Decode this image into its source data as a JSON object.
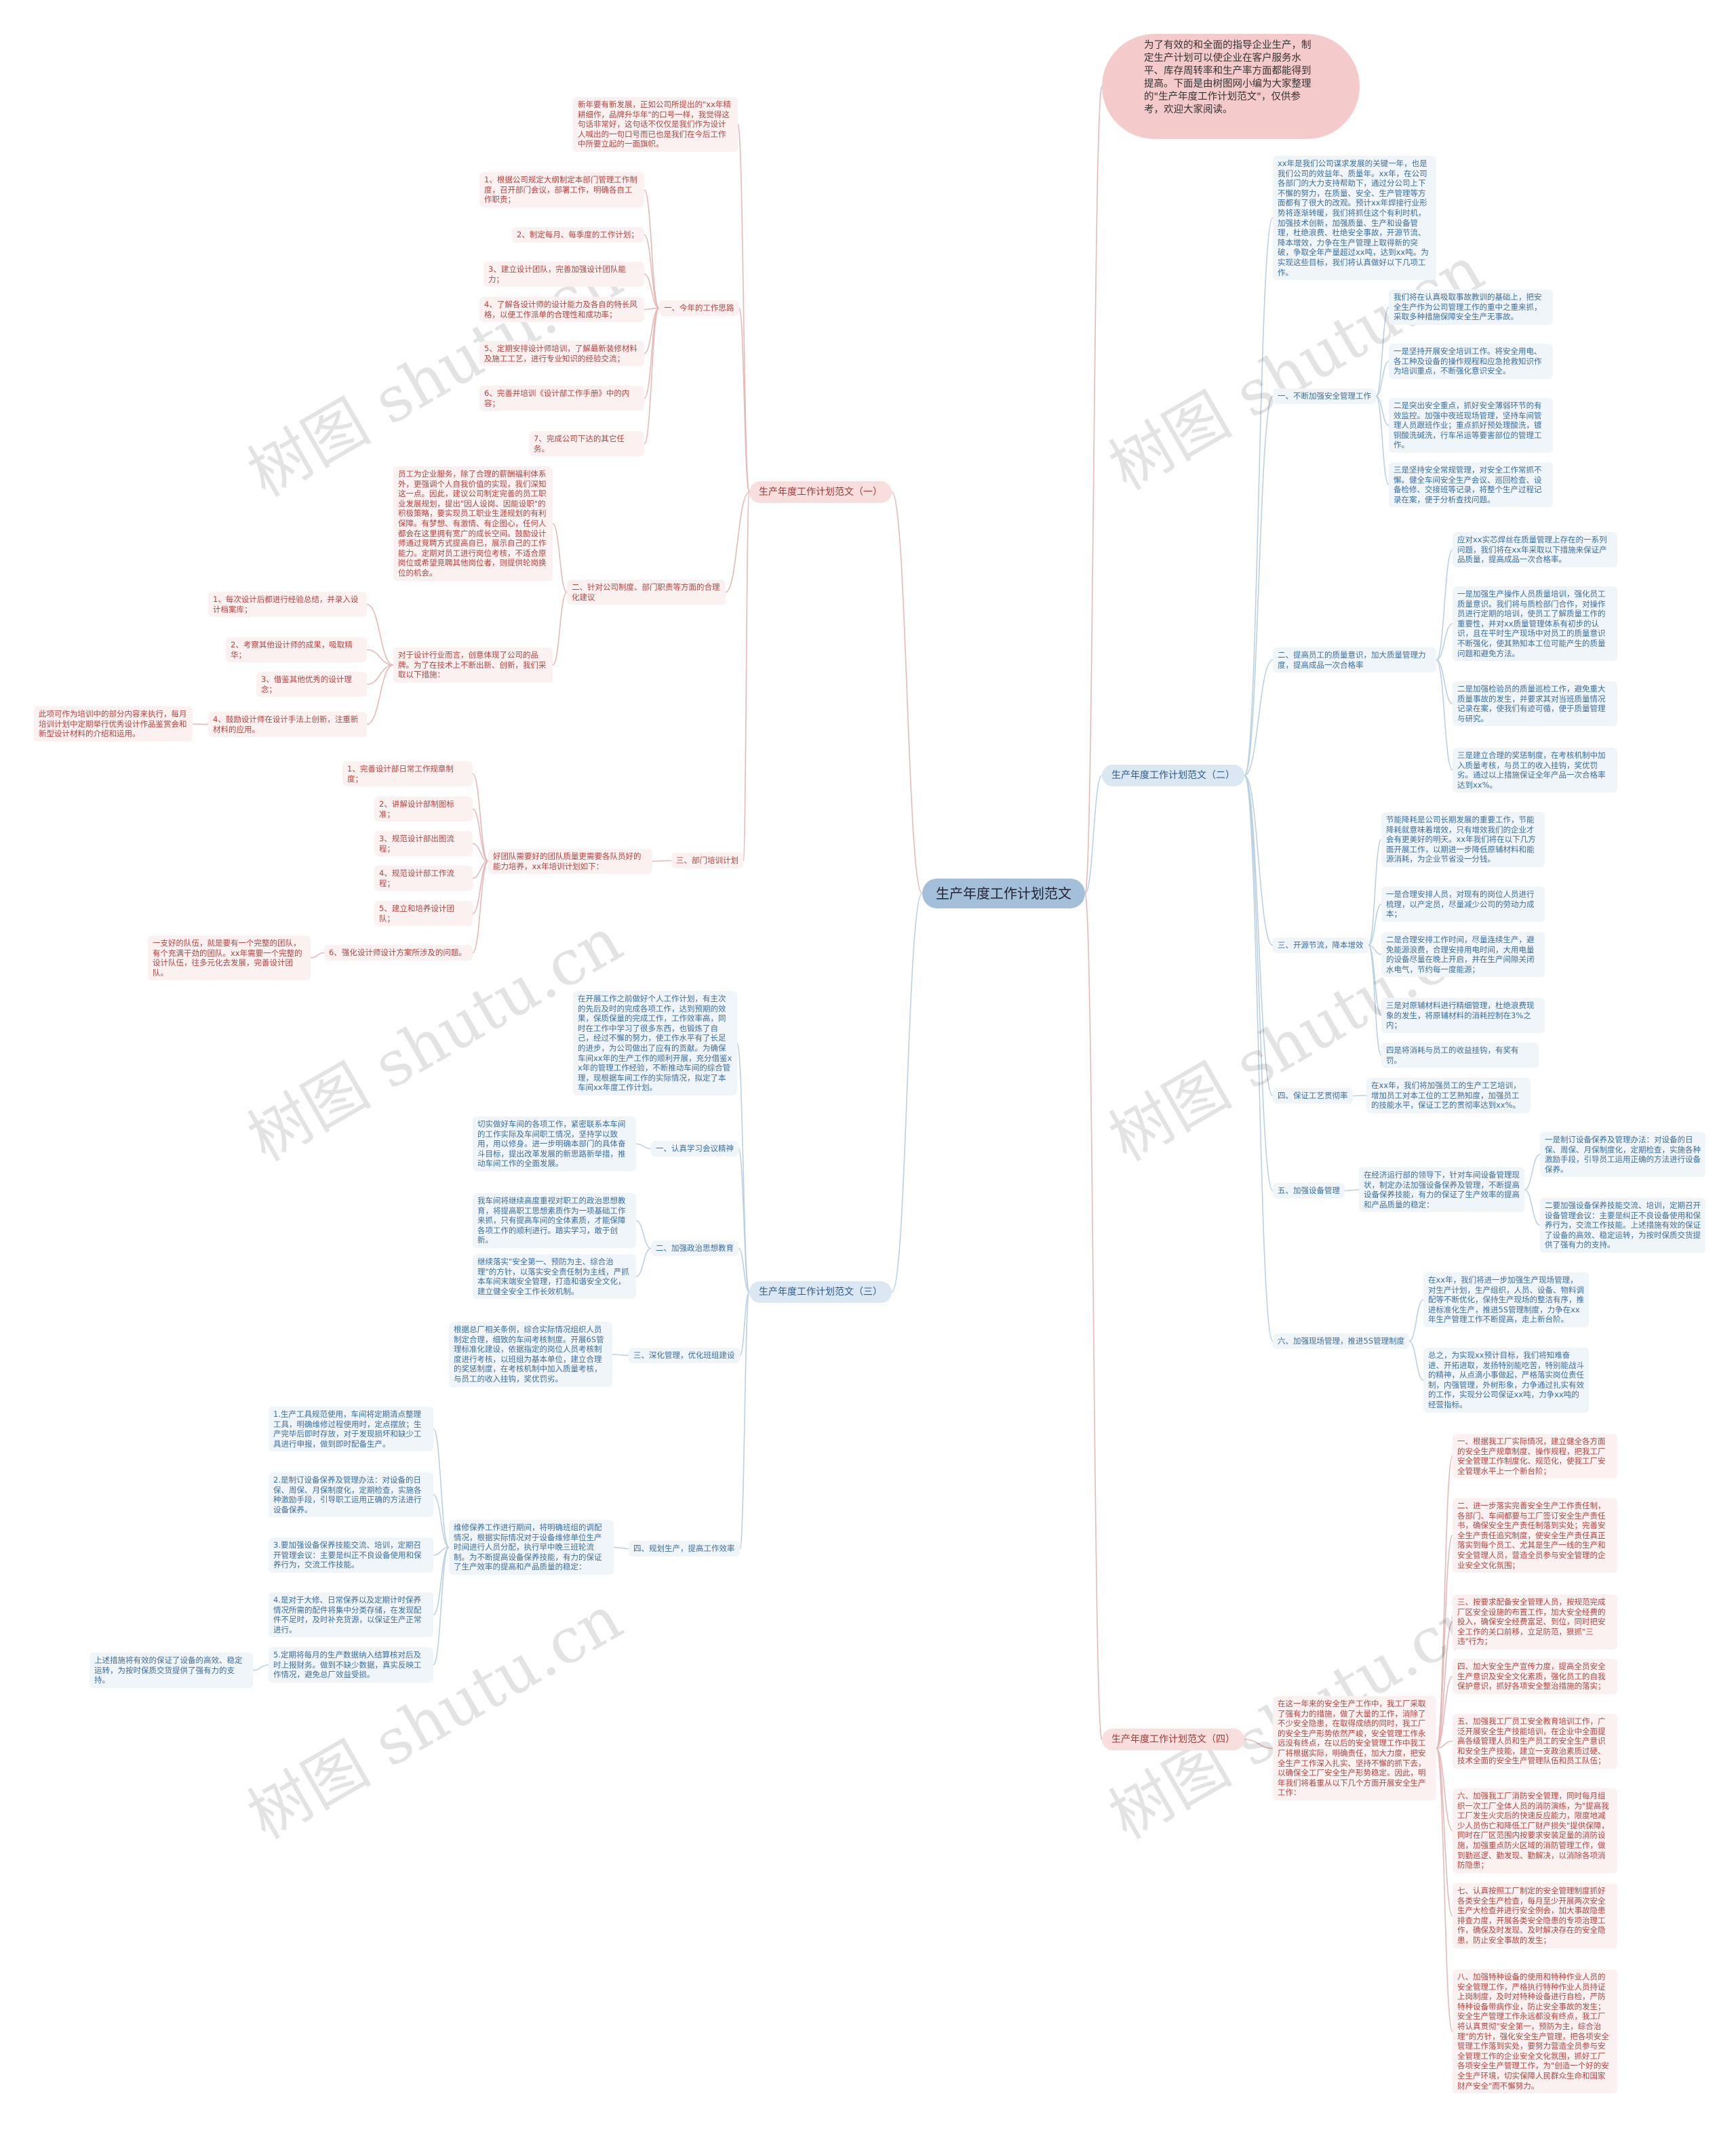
{
  "center": "生产年度工作计划范文",
  "intro": "为了有效的和全面的指导企业生产，制定生产计划可以使企业在客户服务水平、库存周转率和生产率方面都能得到提高。下面是由树图网小编为大家整理的\"生产年度工作计划范文\"，仅供参考，欢迎大家阅读。",
  "watermark": "树图 shutu.cn",
  "colors": {
    "pink_line": "#e6b9b9",
    "blue_line": "#bcd0e3",
    "center": "#a3bfd9",
    "intro_bubble": "#f5caca"
  },
  "plan1": {
    "label": "生产年度工作计划范文（一）",
    "intro": "新年要有新发展，正如公司所提出的\"xx年精耕细作，品牌升华年\"的口号一样，我觉得这句话非常好，这句话不仅仅是我们作为设计人喊出的一句口号而已也是我们在今后工作中所要立起的一面旗帜。",
    "s1": {
      "title": "一、今年的工作思路",
      "items": [
        "1、根据公司规定大纲制定本部门管理工作制度，召开部门会议，部署工作，明确各自工作职责；",
        "2、制定每月、每季度的工作计划；",
        "3、建立设计团队，完善加强设计团队能力；",
        "4、了解各设计师的设计能力及各自的特长风格，以便工作派单的合理性和成功率；",
        "5、定期安排设计师培训，了解最新装修材料及施工工艺，进行专业知识的经验交流；",
        "6、完善并培训《设计部工作手册》中的内容；",
        "7、完成公司下达的其它任务。"
      ]
    },
    "s2": {
      "title": "二、针对公司制度、部门职责等方面的合理化建议",
      "para": "员工为企业服务，除了合理的薪酬福利体系外，更强调个人自我价值的实现，我们深知这一点。因此，建议公司制定完善的员工职业发展规划，提出\"因人设岗、因能设职\"的积极策略，要实现员工职业生涯规划的有利保障。有梦想、有激情、有企图心，任何人都会在这里拥有宽广的成长空间。鼓励设计师通过竞聘方式提高自已，展示自己的工作能力。定期对员工进行岗位考核，不适合原岗位或希望竞聘其他岗位者，则提供轮岗换位的机会。",
      "para2": "对于设计行业而言，创意体现了公司的品牌。为了在技术上不断出新、创新，我们采取以下措施：",
      "items": [
        "1、每次设计后都进行经验总结，并录入设计档案库；",
        "2、考察其他设计师的成果，吸取精华；",
        "3、借鉴其他优秀的设计理念；",
        "4、鼓励设计师在设计手法上创新，注重新材料的应用。"
      ],
      "note": "此项可作为培训中的部分内容来执行，每月培训计划中定期举行优秀设计作品鉴赏会和新型设计材料的介绍和运用。"
    },
    "s3": {
      "title": "三、部门培训计划",
      "para": "好团队需要好的团队质量更需要各队员好的能力培养，xx年培训计划如下：",
      "items": [
        "1、完善设计部日常工作规章制度；",
        "2、讲解设计部制图标准；",
        "3、规范设计部出图流程；",
        "4、规范设计部工作流程；",
        "5、建立和培养设计团队；",
        "6、强化设计师设计方案所涉及的问题。"
      ],
      "note": "一支好的队伍，就是要有一个完整的团队，有个充满干劲的团队。xx年需要一个完整的设计队伍，往多元化去发展，完善设计团队。"
    }
  },
  "plan2": {
    "label": "生产年度工作计划范文（二）",
    "intro": "xx年是我们公司谋求发展的关键一年，也是我们公司的效益年、质量年。xx年，在公司各部门的大力支持帮助下，通过分公司上下不懈的努力，在质量、安全、生产管理等方面都有了很大的改观。预计xx年焊接行业形势将逐渐转暖，我们将抓住这个有利时机，加强技术创新，加强质量、生产和设备管理，杜绝浪费、杜绝安全事故，开源节流、降本增效，力争在生产管理上取得新的突破，争取全年产量超过xx吨，达到xx吨。为实现这些目标，我们将认真做好以下几项工作。",
    "s1": {
      "title": "一、不断加强安全管理工作",
      "items": [
        "我们将在认真吸取事故教训的基础上，把安全生产作为公司管理工作的重中之重来抓，采取多种措施保障安全生产无事故。",
        "一是坚持开展安全培训工作。将安全用电、各工种及设备的操作规程和应急抢救知识作为培训重点，不断强化意识安全。",
        "二是突出安全重点，抓好安全薄弱环节的有效监控。加强中夜班现场管理，坚持车间管理人员跟班作业；重点抓好预处理酸洗，镀铜酸洗碱洗，行车吊运等要害部位的管理工作。",
        "三是坚持安全常规管理，对安全工作常抓不懈。健全车间安全生产会议、巡回检查、设备检修、交接班等记录，将整个生产过程记录在案，便于分析查找问题。"
      ]
    },
    "s2": {
      "title": "二、提高员工的质量意识，加大质量管理力度，提高成品一次合格率",
      "items": [
        "应对xx实芯焊丝在质量管理上存在的一系列问题，我们将在xx年采取以下措施来保证产品质量，提高成品一次合格率。",
        "一是加强生产操作人员质量培训，强化员工质量意识。我们将与质检部门合作，对操作员进行定期的培训，使员工了解质量工作的重要性，并对xx质量管理体系有初步的认识，且在平时生产现场中对员工的质量意识不断强化，使其熟知本工位可能产生的质量问题和避免方法。",
        "二是加强检验员的质量巡检工作，避免重大质量事故的发生，并要求其对当班质量情况记录在案，使我们有迹可循，便于质量管理与研究。",
        "三是建立合理的奖惩制度，在考核机制中加入质量考核，与员工的收入挂钩，奖优罚劣。通过以上措施保证全年产品一次合格率达到xx%。"
      ]
    },
    "s3": {
      "title": "三、开源节流，降本增效",
      "items": [
        "节能降耗是公司长期发展的重要工作，节能降耗就意味着增效，只有增效我们的企业才会有更美好的明天。xx年我们将在以下几方面开展工作，以期进一步降低原辅材料和能源消耗，为企业节省没一分钱。",
        "一是合理安排人员，对现有的岗位人员进行梳理，以产定员，尽量减少公司的劳动力成本；",
        "二是合理安排工作时间，尽量连续生产，避免能源浪费，合理安排用电时间，大用电量的设备尽量在晚上开启，并在生产间隙关闭水电气，节约每一度能源；",
        "三是对原辅材料进行精细管理，杜绝浪费现象的发生，将原辅材料的消耗控制在3%之内；",
        "四是将消耗与员工的收益挂钩，有奖有罚。"
      ]
    },
    "s4": {
      "title": "四、保证工艺贯彻率",
      "text": "在xx年，我们将加强员工的生产工艺培训，增加员工对本工位的工艺熟知度，加强员工的技能水平，保证工艺的贯彻率达到xx%。"
    },
    "s5": {
      "title": "五、加强设备管理",
      "para": "在经济运行部的领导下，针对车间设备管理现状，制定办法加强设备保养及管理，不断提高设备保养技能，有力的保证了生产效率的提高和产品质量的稳定：",
      "items": [
        "一是制订设备保养及管理办法：对设备的日保、周保、月保制度化，定期检查，实施各种激励手段，引导员工运用正确的方法进行设备保养。",
        "二要加强设备保养技能交流、培训，定期召开设备管理会议：主要是纠正不良设备使用和保养行为，交流工作技能。上述措施有效的保证了设备的高效、稳定运转，为按时保质交货提供了强有力的支持。"
      ]
    },
    "s6": {
      "title": "六、加强现场管理，推进5S管理制度",
      "items": [
        "在xx年，我们将进一步加强生产现场管理，对生产计划，生产组织，人员、设备、物料调配等不断优化，保持生产现场的整洁有序，推进标准化生产，推进5S管理制度，力争在xx年生产管理工作不断提高，走上新台阶。",
        "总之，为实现xx预计目标，我们将知难奋进、开拓进取，发扬特别能吃苦，特别能战斗的精神，从点滴小事做起，严格落实岗位责任制，内强管理，外树形象，力争通过扎实有效的工作，实现分公司保证xx吨，力争xx吨的经营指标。"
      ]
    }
  },
  "plan3": {
    "label": "生产年度工作计划范文（三）",
    "intro": "在开展工作之前做好个人工作计划，有主次的先后及时的完成各项工作，达到预期的效果，保质保量的完成工作，工作效率高，同时在工作中学习了很多东西，也锻炼了自己，经过不懈的努力，使工作水平有了长足的进步，为公司做出了应有的贡献。为确保车间xx年的生产工作的顺利开展，充分借鉴xx年的管理工作经验，不断推动车间的综合管理，现根据车间工作的实际情况，拟定了本车间xx年度工作计划。",
    "s1": {
      "title": "一、认真学习会议精神",
      "text": "切实做好车间的各项工作，紧密联系本车间的工作实际及车间职工情况，坚持学以致用，用以修身。进一步明确本部门的具体奋斗目标，提出改革发展的新思路新举措，推动车间工作的全面发展。"
    },
    "s2": {
      "title": "二、加强政治思想教育",
      "items": [
        "我车间将继续高度重视对职工的政治思想教育，将提高职工思想素质作为一项基础工作来抓，只有提高车间的全体素质，才能保障各项工作的顺利进行。踏实学习，敢于创新。",
        "继续落实\"安全第一、预防为主、综合治理\"的方针，以落实安全责任制为主线，严抓本车间末端安全管理，打造和谐安全文化，建立健全安全工作长效机制。"
      ]
    },
    "s3": {
      "title": "三、深化管理，优化班组建设",
      "text": "根据总厂相关条例，综合实际情况组织人员制定合理，细致的车间考核制度。开展6S管理标准化建设，依据指定的岗位人员考核制度进行考核，以班组为基本单位，建立合理的奖惩制度，在考核机制中加入质量考核，与员工的收入挂钩，奖优罚劣。"
    },
    "s4": {
      "title": "四、规划生产，提高工作效率",
      "para": "维修保养工作进行期间，将明确班组的调配情况，根据实际情况对于设备维修单位生产时间进行人员分配，执行早中晚三班轮流制。为不断提高设备保养技能，有力的保证了生产效率的提高和产品质量的稳定：",
      "items": [
        "1.生产工具规范使用，车间将定期清点整理工具，明确维修过程使用时，定点摆放；生产完毕后即时存放，对于发现损坏和缺少工具进行申报，做到即时配备生产。",
        "2.是制订设备保养及管理办法：对设备的日保、周保、月保制度化，定期检查，实施各种激励手段，引导职工运用正确的方法进行设备保养。",
        "3.要加强设备保养技能交流、培训，定期召开管理会议：主要是纠正不良设备使用和保养行为，交流工作技能。",
        "4.是对于大修、日常保养以及定期计时保养情况所需的配件将集中分类存储，在发现配件不足时，及时补充货源，以保证生产正常进行。",
        "5.定期将每月的生产数据纳入结算核对后及时上报财务。做到不缺少数据，真实反映工作情况，避免总厂效益受损。"
      ],
      "note": "上述措施将有效的保证了设备的高效、稳定运转，为按时保质交货提供了强有力的支持。"
    }
  },
  "plan4": {
    "label": "生产年度工作计划范文（四）",
    "intro": "在这一年来的安全生产工作中，我工厂采取了强有力的措施，做了大量的工作，消除了不少安全隐患，在取得成绩的同时，我工厂的安全生产形势依然严峻，安全管理工作永远没有终点，在以后的安全管理工作中我工厂将根据实际，明确责任，加大力度，把安全生产工作深入扎实、坚持不懈的抓下去，以确保全工厂安全生产形势稳定。因此，明年我们将着重从以下几个方面开展安全生产工作：",
    "items": [
      "一、根据我工厂实际情况，建立健全各方面的安全生产规章制度、操作规程，把我工厂安全管理工作制度化、规范化，使我工厂安全管理水平上一个新台阶；",
      "二、进一步落实完善安全生产工作责任制，各部门、车间都要与工厂签订安全生产责任书，确保安全生产责任制落到实处；完善安全生产责任追究制度，使安全生产责任真正落实到每个员工、尤其是生产一线的生产和安全管理人员，营造全员参与安全管理的企业安全文化氛围；",
      "三、按要求配备安全管理人员，按规范完成厂区安全设施的布置工作，加大安全经费的投入，确保安全经费富足、到位，同时把安全工作的关口前移，立足防范，狠抓\"三违\"行为；",
      "四、加大安全生产宣传力度，提高全员安全生产意识及安全文化素质，强化员工的自我保护意识，抓好各项安全整治措施的落实；",
      "五、加强我工厂员工安全教育培训工作，广泛开展安全生产技能培训，在企业中全面提高各级管理人员和生产员工的安全生产意识和安全生产技能，建立一支政治素质过硬、技术全面的安全生产管理队伍和员工队伍；",
      "六、加强我工厂消防安全管理，同时每月组织一次工厂全体人员的消防演练，为\"提高我工厂发生火灾后的快速反应能力，限度地减少人员伤亡和降低工厂财产损失\"提供保障，同时在厂区范围内按要求安装足量的消防设施，加强重点防火区域的消防管理工作，做到勤巡逻、勤发现、勤解决，以消除各项消防隐患；",
      "七、认真按照工厂制定的安全管理制度抓好各类安全生产检查，每月至少开展两次安全生产大检查并进行安全例会，加大事故隐患排查力度，开展各类安全隐患的专项治理工作，确保及时发现、及时解决存在的安全隐患，防止安全事故的发生；",
      "八、加强特种设备的使用和特种作业人员的安全管理工作，严格执行特种作业人员持证上岗制度，及时对特种设备进行自检，严防特种设备带病作业，防止安全事故的发生；安全生产管理工作永远都没有终点，我工厂将认真贯彻\"安全第一，预防为主，综合治理\"的方针，强化安全生产管理，把各项安全管理工作落到实处，要努力营造全员参与安全管理工作的企业安全文化氛围，抓好工厂各项安全生产管理工作，为\"创造一个好的安全生产环境，切实保障人民群众生命和国家财产安全\"而不懈努力。"
    ]
  }
}
